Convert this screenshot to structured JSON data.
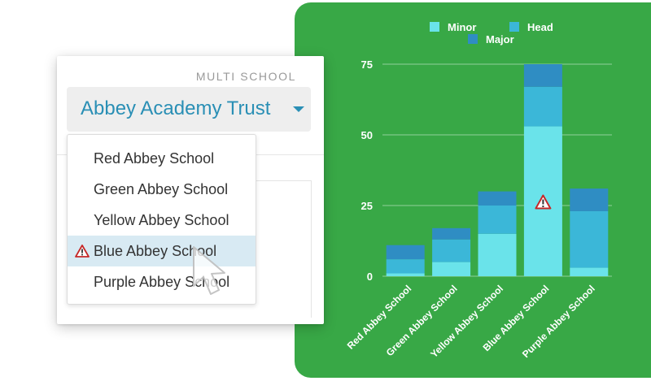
{
  "card": {
    "heading": "MULTI SCHOOL",
    "selected_trust": "Abbey Academy Trust"
  },
  "menu": {
    "items": [
      {
        "label": "Red Abbey School",
        "warning": false,
        "selected": false
      },
      {
        "label": "Green Abbey School",
        "warning": false,
        "selected": false
      },
      {
        "label": "Yellow Abbey School",
        "warning": false,
        "selected": false
      },
      {
        "label": "Blue Abbey School",
        "warning": true,
        "selected": true
      },
      {
        "label": "Purple Abbey School",
        "warning": false,
        "selected": false
      }
    ]
  },
  "icons": {
    "warning": "warning-triangle-icon",
    "caret": "caret-down-icon",
    "pointer": "mouse-pointer-icon"
  },
  "colors": {
    "panel": "#38a846",
    "minor": "#6ae3ea",
    "head": "#3bb7d8",
    "major": "#2f8dc3",
    "accent": "#2a8fb5",
    "selected_row": "#d8eaf3",
    "warning": "#c62828"
  },
  "chart_data": {
    "type": "bar",
    "stacked": true,
    "categories": [
      "Red Abbey School",
      "Green Abbey School",
      "Yellow Abbey School",
      "Blue Abbey School",
      "Purple Abbey School"
    ],
    "series": [
      {
        "name": "Minor",
        "color": "#6ae3ea",
        "values": [
          1,
          5,
          15,
          53,
          3
        ]
      },
      {
        "name": "Head",
        "color": "#3bb7d8",
        "values": [
          5,
          8,
          10,
          14,
          20
        ]
      },
      {
        "name": "Major",
        "color": "#2f8dc3",
        "values": [
          5,
          4,
          5,
          8,
          8
        ]
      }
    ],
    "yticks": [
      0,
      25,
      50,
      75
    ],
    "ylim": [
      0,
      75
    ],
    "grid": true,
    "legend": "top",
    "warning_category": "Blue Abbey School",
    "title": "",
    "xlabel": "",
    "ylabel": ""
  }
}
